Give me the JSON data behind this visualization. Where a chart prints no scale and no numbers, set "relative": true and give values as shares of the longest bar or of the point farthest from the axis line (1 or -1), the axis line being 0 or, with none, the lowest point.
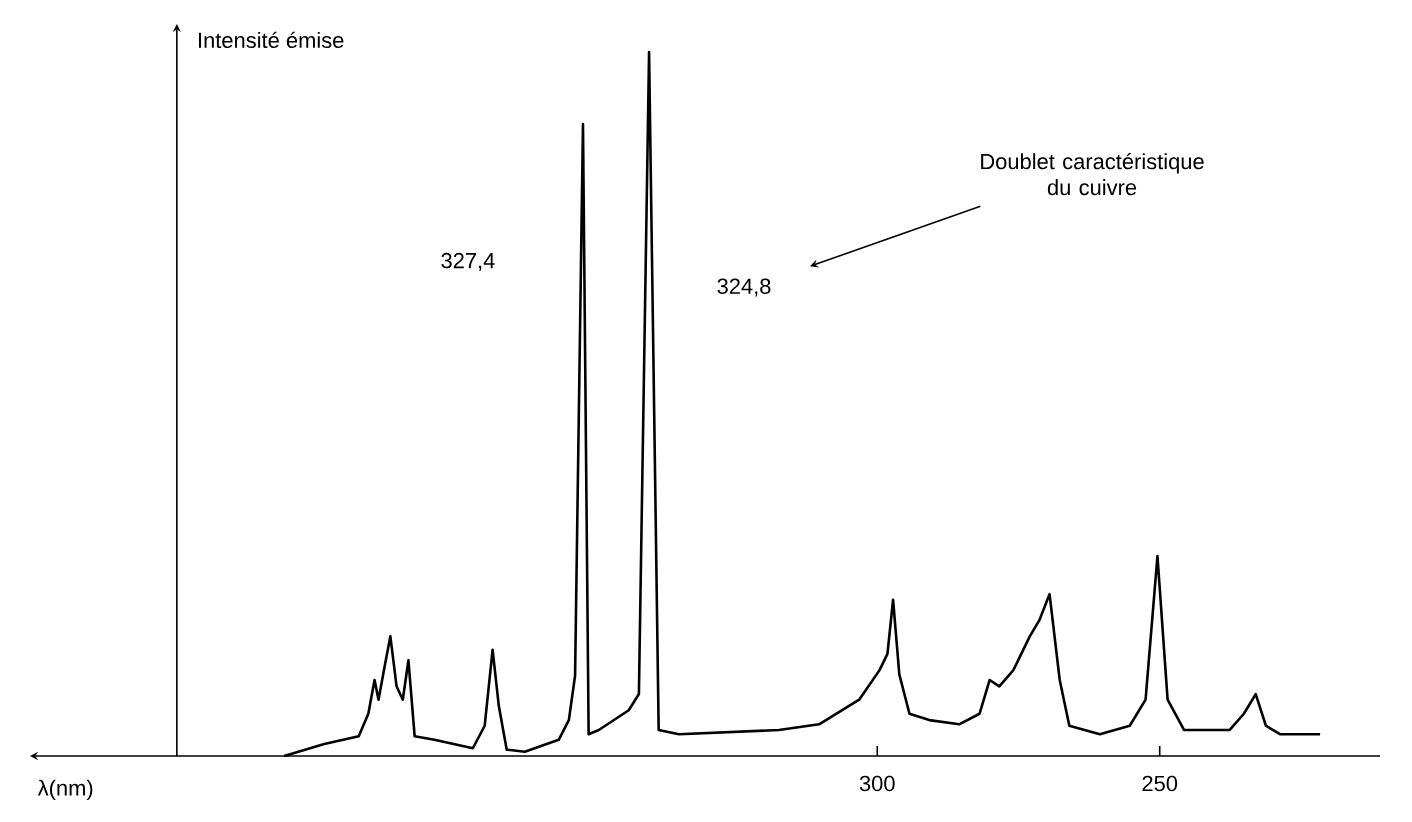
{
  "chart_data": {
    "type": "line",
    "relative": true,
    "xlabel": "λ(nm)",
    "ylabel": "Intensité émise",
    "ref_lines": [
      {
        "axis": "x",
        "value": 424,
        "color": "#000000"
      }
    ],
    "xlim": [
      450,
      211
    ],
    "xticks": [
      300,
      250
    ],
    "annotations": [
      "327,4",
      "324,8",
      "Doublet caractéristique du cuivre"
    ],
    "series": [
      {
        "color": "#000000",
        "x": [
          405.0,
          397.9,
          391.8,
          390.1,
          389.0,
          388.3,
          387.2,
          386.2,
          385.1,
          384.0,
          383.0,
          381.9,
          378.4,
          371.6,
          369.5,
          368.1,
          367.0,
          365.6,
          362.4,
          356.4,
          354.6,
          353.5,
          352.1,
          351.1,
          349.3,
          344.0,
          342.2,
          340.4,
          338.7,
          335.1,
          317.4,
          310.3,
          303.2,
          299.6,
          298.2,
          297.2,
          296.1,
          294.3,
          290.8,
          285.5,
          281.9,
          280.1,
          278.4,
          275.9,
          273.0,
          271.3,
          269.5,
          267.7,
          266.0,
          260.6,
          255.3,
          252.5,
          250.4,
          248.6,
          245.7,
          237.6,
          235.1,
          233.0,
          231.2,
          228.7,
          221.6
        ],
        "values": [
          0.0,
          0.017,
          0.028,
          0.06,
          0.108,
          0.08,
          0.128,
          0.17,
          0.099,
          0.08,
          0.136,
          0.028,
          0.023,
          0.011,
          0.043,
          0.151,
          0.071,
          0.009,
          0.006,
          0.023,
          0.051,
          0.114,
          0.898,
          0.031,
          0.037,
          0.065,
          0.088,
          1.0,
          0.037,
          0.031,
          0.037,
          0.045,
          0.08,
          0.122,
          0.145,
          0.222,
          0.116,
          0.06,
          0.051,
          0.045,
          0.06,
          0.108,
          0.099,
          0.122,
          0.17,
          0.193,
          0.23,
          0.108,
          0.043,
          0.031,
          0.043,
          0.08,
          0.284,
          0.08,
          0.037,
          0.037,
          0.06,
          0.088,
          0.043,
          0.031,
          0.031
        ]
      }
    ]
  }
}
